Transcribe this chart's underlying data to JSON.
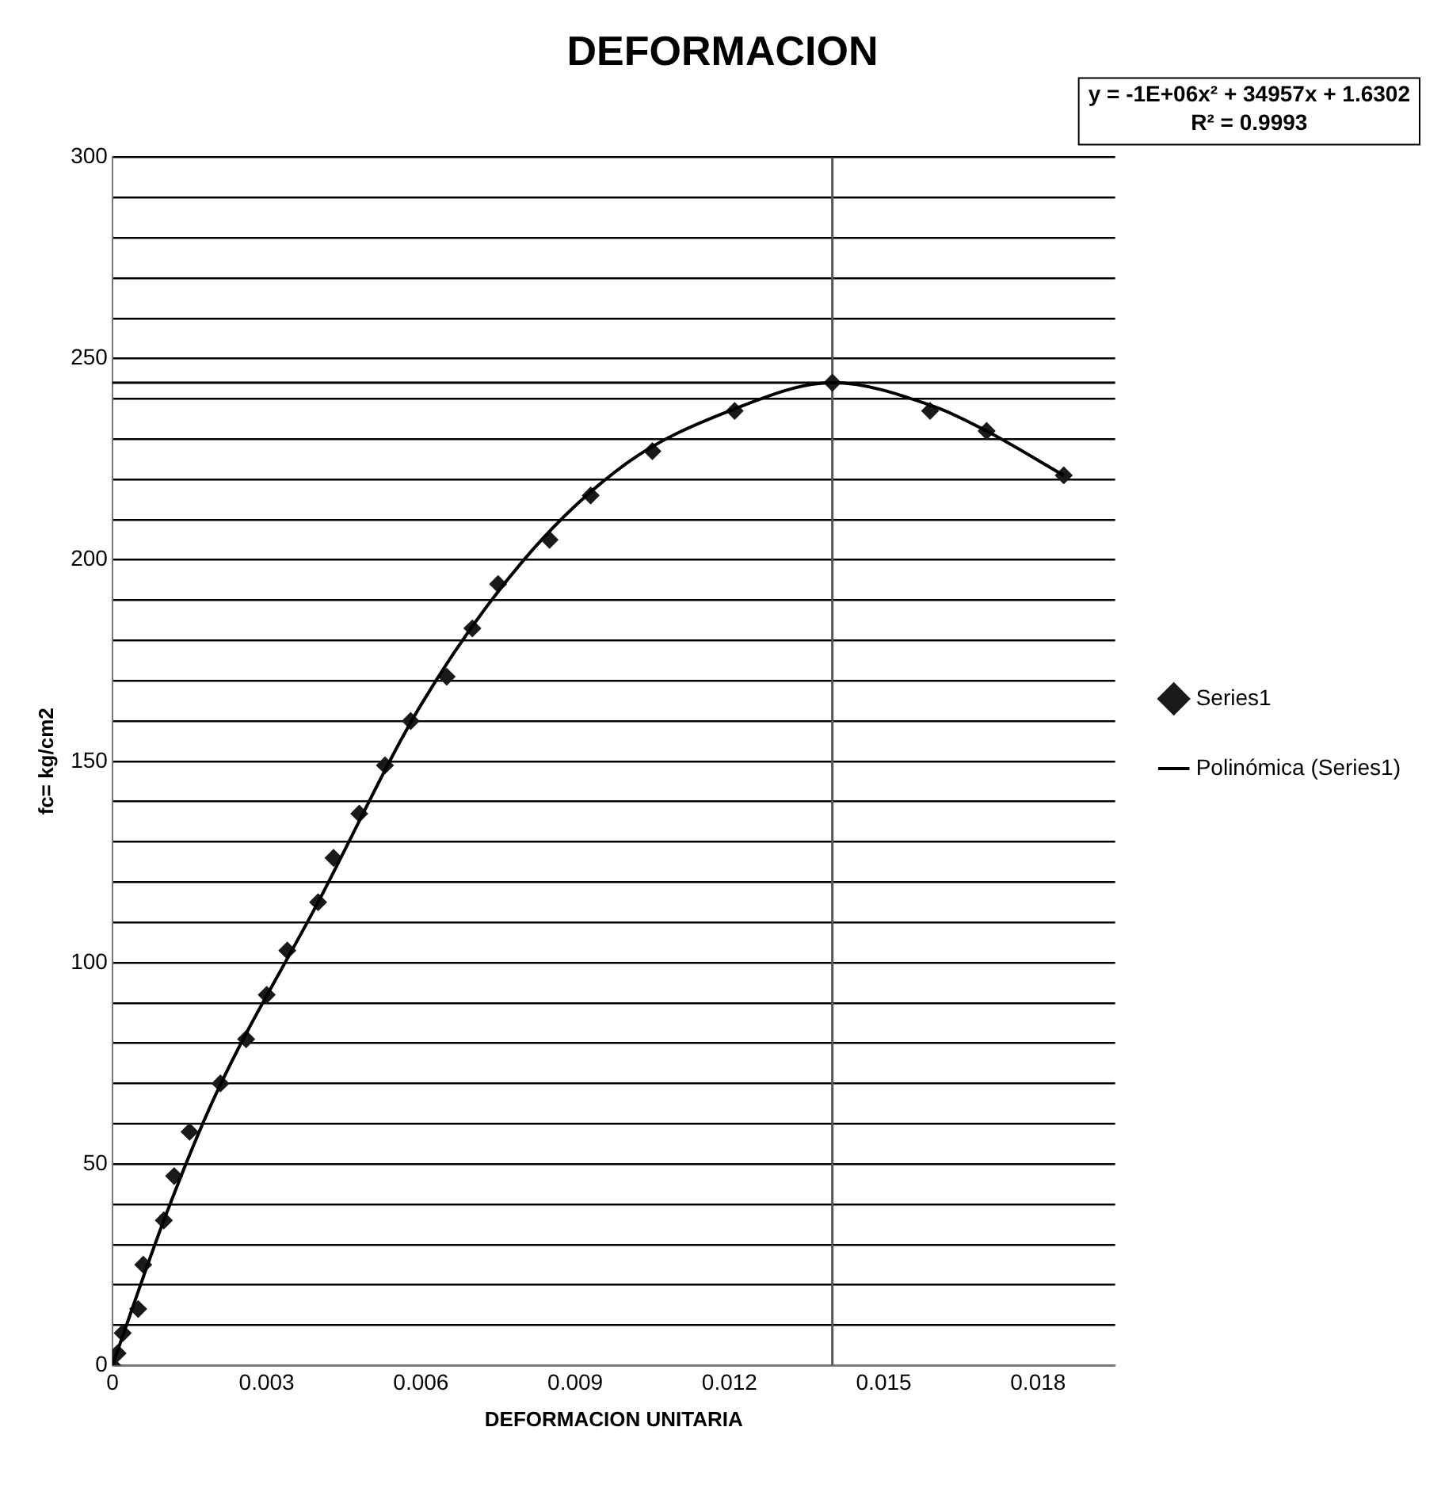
{
  "chart_data": {
    "type": "scatter",
    "title": "DEFORMACION",
    "xlabel": "DEFORMACION UNITARIA",
    "ylabel": "fc= kg/cm2",
    "annotations": [
      "y = -1E+06x² + 34957x + 1.6302",
      "R² = 0.9993"
    ],
    "series": [
      {
        "name": "Series1",
        "color": "#1a1a1a",
        "marker": "diamond",
        "x": [
          0,
          0.0001,
          0.0002,
          0.0005,
          0.0006,
          0.001,
          0.0012,
          0.0015,
          0.0021,
          0.0026,
          0.003,
          0.0034,
          0.004,
          0.0043,
          0.0048,
          0.0053,
          0.0058,
          0.0065,
          0.007,
          0.0075,
          0.0085,
          0.0093,
          0.0105,
          0.0121,
          0.014,
          0.0159,
          0.017,
          0.0185
        ],
        "values": [
          0,
          3,
          8,
          14,
          25,
          36,
          47,
          58,
          70,
          81,
          92,
          103,
          115,
          126,
          137,
          149,
          160,
          171,
          183,
          194,
          205,
          216,
          227,
          237,
          244,
          237,
          232,
          221
        ]
      },
      {
        "name": "Polinómica (Series1)",
        "type": "line",
        "color": "#000000",
        "marker": "none",
        "line_style": "solid",
        "x": [
          0,
          0.001,
          0.002,
          0.004,
          0.006,
          0.008,
          0.01,
          0.012,
          0.014,
          0.016,
          0.017,
          0.0185
        ],
        "values": [
          0,
          36,
          67,
          115,
          164,
          200,
          224,
          237,
          244,
          238,
          232,
          221
        ]
      }
    ],
    "xlim": [
      0,
      0.0195
    ],
    "xticks": [
      0,
      0.003,
      0.006,
      0.009,
      0.012,
      0.015,
      0.018
    ],
    "ylim": [
      0,
      300
    ],
    "yticks": [
      0,
      {
        "value": 10,
        "label": null
      },
      {
        "value": 20,
        "label": null
      },
      {
        "value": 30,
        "label": null
      },
      {
        "value": 40,
        "label": null
      },
      50,
      {
        "value": 60,
        "label": null
      },
      {
        "value": 70,
        "label": null
      },
      {
        "value": 80,
        "label": null
      },
      {
        "value": 90,
        "label": null
      },
      100,
      {
        "value": 110,
        "label": null
      },
      {
        "value": 120,
        "label": null
      },
      {
        "value": 130,
        "label": null
      },
      {
        "value": 140,
        "label": null
      },
      150,
      {
        "value": 160,
        "label": null
      },
      {
        "value": 170,
        "label": null
      },
      {
        "value": 180,
        "label": null
      },
      {
        "value": 190,
        "label": null
      },
      200,
      {
        "value": 210,
        "label": null
      },
      {
        "value": 220,
        "label": null
      },
      {
        "value": 230,
        "label": null
      },
      {
        "value": 240,
        "label": null
      },
      250,
      {
        "value": 260,
        "label": null
      },
      {
        "value": 270,
        "label": null
      },
      {
        "value": 280,
        "label": null
      },
      {
        "value": 290,
        "label": null
      },
      300
    ],
    "grid": "y",
    "legend": "right",
    "ref_lines": [
      {
        "axis": "x",
        "value": 0.014,
        "color": "#555555"
      },
      {
        "axis": "y",
        "value": 244,
        "color": "#000000"
      }
    ]
  }
}
